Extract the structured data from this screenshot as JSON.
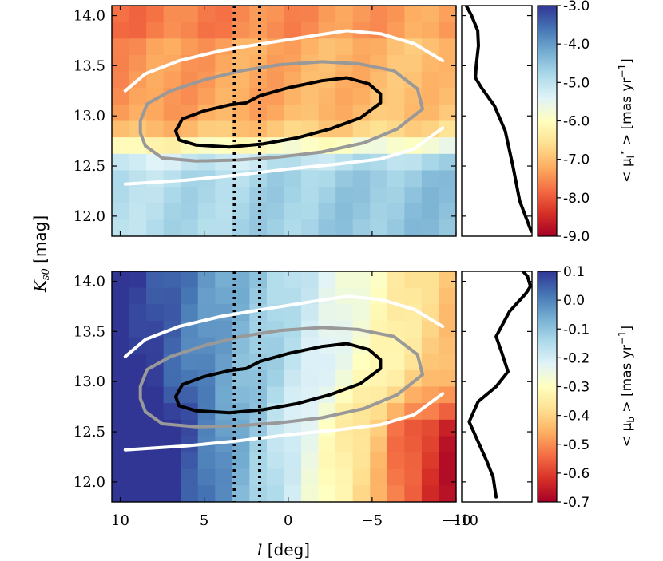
{
  "chart_data": {
    "type": "heatmap",
    "xlabel_var": "l",
    "xlabel_unit": "[deg]",
    "ylabel_var": "K",
    "ylabel_sub": "s0",
    "ylabel_unit": "[mag]",
    "x_range": [
      10.5,
      -10
    ],
    "y_range": [
      11.8,
      14.1
    ],
    "x_tick_values": [
      10,
      5,
      0,
      -5,
      -10
    ],
    "x_tick_labels": [
      "10",
      "5",
      "0",
      "−5",
      "−10"
    ],
    "y_tick_values": [
      14.0,
      13.5,
      13.0,
      12.5,
      12.0
    ],
    "y_tick_labels": [
      "14.0",
      "13.5",
      "13.0",
      "12.5",
      "12.0"
    ],
    "dotted_lines_l": [
      3.2,
      1.7
    ],
    "contours": [
      {
        "name": "outer",
        "color": "#ffffff",
        "points": [
          [
            9.7,
            13.25
          ],
          [
            8.5,
            13.42
          ],
          [
            6.5,
            13.55
          ],
          [
            4.0,
            13.65
          ],
          [
            1.5,
            13.72
          ],
          [
            -1.5,
            13.8
          ],
          [
            -3.5,
            13.85
          ],
          [
            -5.5,
            13.82
          ],
          [
            -7.5,
            13.72
          ],
          [
            -9.2,
            13.55
          ]
        ],
        "points2": [
          [
            9.7,
            12.32
          ],
          [
            6.0,
            12.36
          ],
          [
            3.0,
            12.41
          ],
          [
            0.0,
            12.47
          ],
          [
            -3.0,
            12.52
          ],
          [
            -5.5,
            12.57
          ],
          [
            -7.5,
            12.67
          ],
          [
            -9.2,
            12.88
          ]
        ]
      },
      {
        "name": "middle",
        "color": "#999999",
        "points": [
          [
            8.8,
            12.95
          ],
          [
            8.4,
            13.12
          ],
          [
            7.0,
            13.25
          ],
          [
            5.0,
            13.36
          ],
          [
            2.8,
            13.45
          ],
          [
            0.5,
            13.51
          ],
          [
            -2.0,
            13.54
          ],
          [
            -4.2,
            13.52
          ],
          [
            -6.3,
            13.45
          ],
          [
            -7.7,
            13.27
          ],
          [
            -8.0,
            13.07
          ],
          [
            -6.5,
            12.87
          ],
          [
            -4.5,
            12.73
          ],
          [
            -2.0,
            12.64
          ],
          [
            0.5,
            12.59
          ],
          [
            3.0,
            12.56
          ],
          [
            5.5,
            12.55
          ],
          [
            7.5,
            12.58
          ],
          [
            8.5,
            12.7
          ],
          [
            8.8,
            12.83
          ],
          [
            8.8,
            12.95
          ]
        ]
      },
      {
        "name": "inner",
        "color": "#000000",
        "points": [
          [
            6.7,
            12.85
          ],
          [
            6.3,
            12.97
          ],
          [
            5.0,
            13.05
          ],
          [
            3.5,
            13.11
          ],
          [
            2.5,
            13.13
          ],
          [
            1.7,
            13.2
          ],
          [
            0.0,
            13.28
          ],
          [
            -2.0,
            13.35
          ],
          [
            -3.5,
            13.38
          ],
          [
            -4.8,
            13.32
          ],
          [
            -5.5,
            13.22
          ],
          [
            -5.5,
            13.13
          ],
          [
            -4.3,
            12.98
          ],
          [
            -2.5,
            12.87
          ],
          [
            -0.5,
            12.78
          ],
          [
            1.5,
            12.72
          ],
          [
            3.5,
            12.69
          ],
          [
            5.5,
            12.71
          ],
          [
            6.5,
            12.76
          ],
          [
            6.7,
            12.85
          ]
        ]
      }
    ],
    "panels": [
      {
        "name": "top",
        "field": "mu_l",
        "side_profile": [
          [
            -8.85,
            11.85
          ],
          [
            -8.1,
            12.15
          ],
          [
            -7.65,
            12.5
          ],
          [
            -7.15,
            12.85
          ],
          [
            -6.45,
            13.1
          ],
          [
            -5.6,
            13.28
          ],
          [
            -5.2,
            13.38
          ],
          [
            -5.25,
            13.5
          ],
          [
            -5.4,
            13.7
          ],
          [
            -5.35,
            13.85
          ],
          [
            -4.95,
            14.0
          ],
          [
            -4.6,
            14.1
          ]
        ],
        "side_x_range": [
          -4.3,
          -8.9
        ],
        "colorbar": {
          "label_pre": "< μ",
          "label_sub": "l",
          "label_sup": "⋆",
          "label_post": " > [mas yr",
          "label_unit_sup": "−1",
          "label_end": "]",
          "range": [
            -9.0,
            -3.0
          ],
          "tick_values": [
            -3.0,
            -4.0,
            -5.0,
            -6.0,
            -7.0,
            -8.0,
            -9.0
          ],
          "tick_labels": [
            "-3.0",
            "-4.0",
            "-5.0",
            "-6.0",
            "-7.0",
            "-8.0",
            "-9.0"
          ]
        }
      },
      {
        "name": "bottom",
        "field": "mu_b",
        "side_profile": [
          [
            -0.24,
            11.85
          ],
          [
            -0.26,
            12.05
          ],
          [
            -0.3,
            12.2
          ],
          [
            -0.36,
            12.4
          ],
          [
            -0.42,
            12.6
          ],
          [
            -0.36,
            12.8
          ],
          [
            -0.24,
            12.95
          ],
          [
            -0.16,
            13.1
          ],
          [
            -0.2,
            13.28
          ],
          [
            -0.24,
            13.45
          ],
          [
            -0.15,
            13.7
          ],
          [
            -0.04,
            13.88
          ],
          [
            -0.01,
            13.95
          ],
          [
            -0.03,
            14.05
          ],
          [
            -0.06,
            14.1
          ]
        ],
        "side_x_range": [
          -0.47,
          0.0
        ],
        "colorbar": {
          "label_pre": "< μ",
          "label_sub": "b",
          "label_sup": "",
          "label_post": " > [mas yr",
          "label_unit_sup": "−1",
          "label_end": "]",
          "range": [
            -0.7,
            0.1
          ],
          "tick_values": [
            0.1,
            0.0,
            -0.1,
            -0.2,
            -0.3,
            -0.4,
            -0.5,
            -0.6,
            -0.7
          ],
          "tick_labels": [
            "0.1",
            "0.0",
            "-0.1",
            "-0.2",
            "-0.3",
            "-0.4",
            "-0.5",
            "-0.6",
            "-0.7"
          ]
        }
      }
    ]
  }
}
